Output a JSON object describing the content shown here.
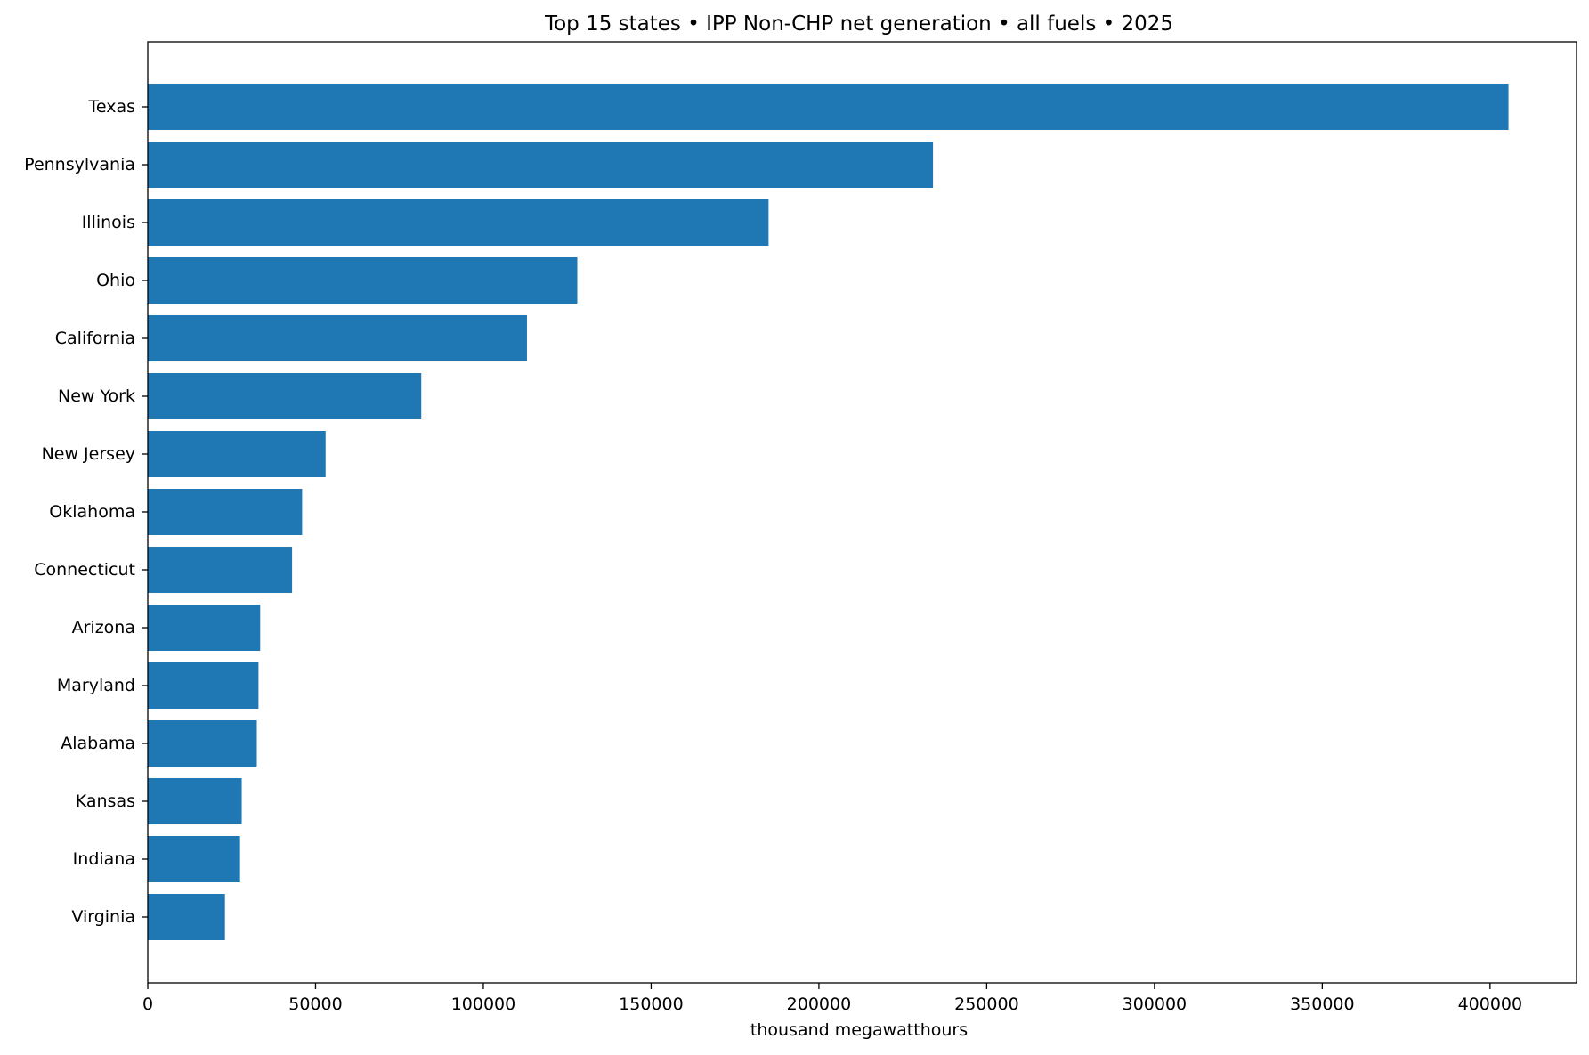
{
  "chart_data": {
    "type": "bar",
    "orientation": "horizontal",
    "title": "Top 15 states • IPP Non-CHP net generation • all fuels • 2025",
    "xlabel": "thousand megawatthours",
    "ylabel": "",
    "categories": [
      "Texas",
      "Pennsylvania",
      "Illinois",
      "Ohio",
      "California",
      "New York",
      "New Jersey",
      "Oklahoma",
      "Connecticut",
      "Arizona",
      "Maryland",
      "Alabama",
      "Kansas",
      "Indiana",
      "Virginia"
    ],
    "values": [
      405500,
      234000,
      185000,
      128000,
      113000,
      81500,
      53000,
      46000,
      43000,
      33500,
      33000,
      32500,
      28000,
      27500,
      23000
    ],
    "xlim": [
      0,
      425775
    ],
    "xticks": [
      0,
      50000,
      100000,
      150000,
      200000,
      250000,
      300000,
      350000,
      400000
    ],
    "grid": false,
    "bar_color": "#1f77b4"
  }
}
